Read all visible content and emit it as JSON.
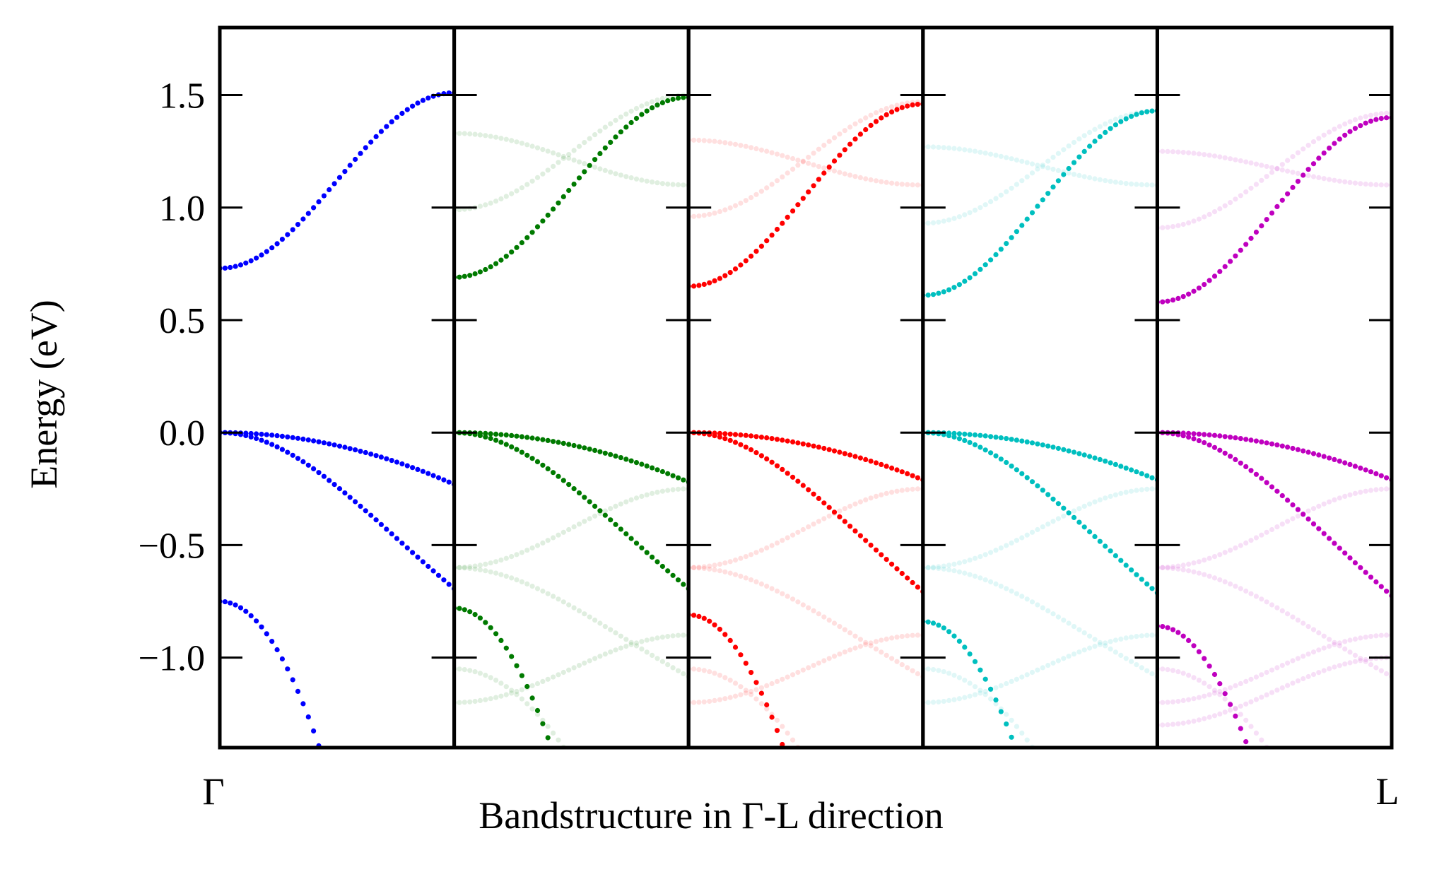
{
  "chart_data": {
    "type": "scatter",
    "layout": "five side-by-side panels sharing the y axis",
    "xlabel": "Bandstructure in Γ-L direction",
    "ylabel": "Energy (eV)",
    "kpoint_labels": {
      "start": "Γ",
      "end": "L"
    },
    "x_range": [
      0,
      1
    ],
    "ylim": [
      -1.4,
      1.8
    ],
    "yticks": [
      1.5,
      1.0,
      0.5,
      0.0,
      -0.5,
      -1.0
    ],
    "ytick_labels": [
      "1.5",
      "1.0",
      "0.5",
      "0.0",
      "−0.5",
      "−1.0"
    ],
    "grid": false,
    "points_per_band": 46,
    "panels": [
      {
        "color": "#0000ff",
        "shadow_bands": [],
        "bands": [
          {
            "type": "cond",
            "start": 0.73,
            "end": 1.51
          },
          {
            "type": "val",
            "curvature": -0.23,
            "plateau": 0
          },
          {
            "type": "val",
            "curvature": -1.1,
            "plateau": 0.45
          },
          {
            "type": "val_deep",
            "start": -0.75,
            "curvature": -3.6
          }
        ]
      },
      {
        "color": "#007a00",
        "shadow_bands": [
          {
            "type": "cond",
            "start": 0.99,
            "end": 1.5
          },
          {
            "type": "cond_down",
            "start": 1.33,
            "end": 1.1
          },
          {
            "type": "val_up",
            "start": -0.6,
            "end": -0.25
          },
          {
            "type": "val",
            "curvature": -0.8,
            "plateau": 0.5,
            "offset": -0.6
          },
          {
            "type": "val_deep",
            "start": -1.05,
            "curvature": -1.6
          },
          {
            "type": "val_up",
            "start": -1.2,
            "end": -0.9
          }
        ],
        "bands": [
          {
            "type": "cond",
            "start": 0.69,
            "end": 1.49
          },
          {
            "type": "val",
            "curvature": -0.22,
            "plateau": 0
          },
          {
            "type": "val",
            "curvature": -1.1,
            "plateau": 0.45
          },
          {
            "type": "val_deep",
            "start": -0.78,
            "curvature": -3.6
          }
        ]
      },
      {
        "color": "#ff0000",
        "shadow_bands": [
          {
            "type": "cond",
            "start": 0.96,
            "end": 1.47
          },
          {
            "type": "cond_down",
            "start": 1.3,
            "end": 1.1
          },
          {
            "type": "val_up",
            "start": -0.6,
            "end": -0.25
          },
          {
            "type": "val",
            "curvature": -0.8,
            "plateau": 0.5,
            "offset": -0.6
          },
          {
            "type": "val_deep",
            "start": -1.05,
            "curvature": -1.6
          },
          {
            "type": "val_up",
            "start": -1.2,
            "end": -0.9
          }
        ],
        "bands": [
          {
            "type": "cond",
            "start": 0.65,
            "end": 1.46
          },
          {
            "type": "val",
            "curvature": -0.21,
            "plateau": 0
          },
          {
            "type": "val",
            "curvature": -1.12,
            "plateau": 0.45
          },
          {
            "type": "val_deep",
            "start": -0.81,
            "curvature": -3.6
          }
        ]
      },
      {
        "color": "#00bfbf",
        "shadow_bands": [
          {
            "type": "cond",
            "start": 0.93,
            "end": 1.43
          },
          {
            "type": "cond_down",
            "start": 1.27,
            "end": 1.1
          },
          {
            "type": "val_up",
            "start": -0.6,
            "end": -0.25
          },
          {
            "type": "val",
            "curvature": -0.8,
            "plateau": 0.5,
            "offset": -0.6
          },
          {
            "type": "val_deep",
            "start": -1.05,
            "curvature": -1.6
          },
          {
            "type": "val_up",
            "start": -1.2,
            "end": -0.9
          }
        ],
        "bands": [
          {
            "type": "cond",
            "start": 0.61,
            "end": 1.43
          },
          {
            "type": "val",
            "curvature": -0.21,
            "plateau": 0
          },
          {
            "type": "val",
            "curvature": -1.13,
            "plateau": 0.45
          },
          {
            "type": "val_deep",
            "start": -0.84,
            "curvature": -3.6
          }
        ]
      },
      {
        "color": "#bf00bf",
        "shadow_bands": [
          {
            "type": "cond",
            "start": 0.91,
            "end": 1.42
          },
          {
            "type": "cond_down",
            "start": 1.25,
            "end": 1.1
          },
          {
            "type": "val_up",
            "start": -0.6,
            "end": -0.25
          },
          {
            "type": "val",
            "curvature": -0.8,
            "plateau": 0.5,
            "offset": -0.6
          },
          {
            "type": "val_deep",
            "start": -1.05,
            "curvature": -1.6
          },
          {
            "type": "val_up",
            "start": -1.2,
            "end": -0.9
          },
          {
            "type": "val_up",
            "start": -1.3,
            "end": -1.0
          }
        ],
        "bands": [
          {
            "type": "cond",
            "start": 0.58,
            "end": 1.4
          },
          {
            "type": "val",
            "curvature": -0.21,
            "plateau": 0
          },
          {
            "type": "val",
            "curvature": -1.15,
            "plateau": 0.45
          },
          {
            "type": "val_deep",
            "start": -0.86,
            "curvature": -3.6
          }
        ]
      }
    ]
  }
}
